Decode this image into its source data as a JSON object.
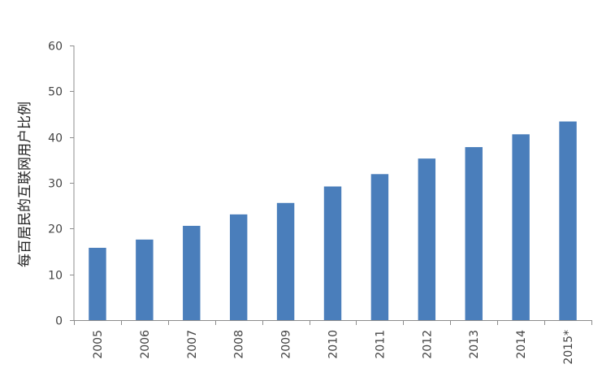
{
  "chart_data": {
    "type": "bar",
    "title": "",
    "xlabel": "",
    "ylabel": "每百居民的互联网用户比例",
    "categories": [
      "2005",
      "2006",
      "2007",
      "2008",
      "2009",
      "2010",
      "2011",
      "2012",
      "2013",
      "2014",
      "2015*"
    ],
    "values": [
      15.8,
      17.6,
      20.6,
      23.1,
      25.6,
      29.2,
      31.9,
      35.3,
      37.8,
      40.6,
      43.4
    ],
    "ylim": [
      0,
      60
    ],
    "yticks": [
      0,
      10,
      20,
      30,
      40,
      50,
      60
    ],
    "grid": false,
    "legend": "none",
    "colors": {
      "bar": "#4a7ebb",
      "axis": "#8c8c8c"
    }
  }
}
